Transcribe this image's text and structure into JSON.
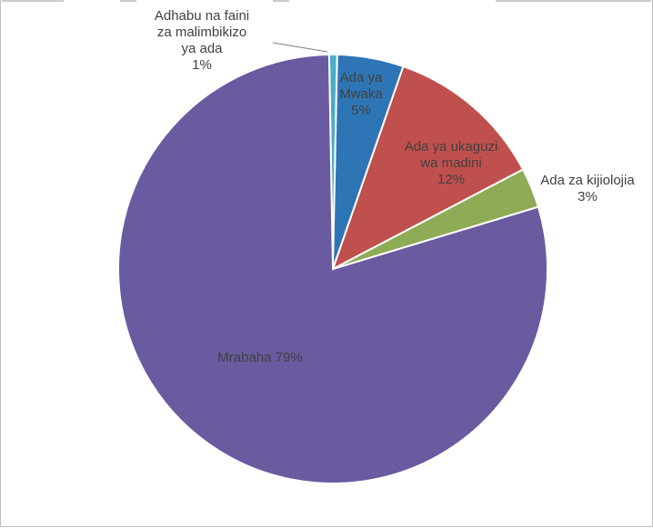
{
  "chart_data": {
    "type": "pie",
    "title": "",
    "slices": [
      {
        "label": "Adhabu na faini za malimbikizo ya ada",
        "value": 0.6,
        "display": "1%",
        "color": "#4bacc6",
        "lines": [
          "Adhabu na faini",
          "za malimbikizo",
          "ya ada",
          "1%"
        ]
      },
      {
        "label": "Ada ya Mwaka",
        "value": 5,
        "display": "5%",
        "color": "#2e75b6",
        "lines": [
          "Ada ya",
          "Mwaka",
          "5%"
        ]
      },
      {
        "label": "Ada ya ukaguzi wa madini",
        "value": 12,
        "display": "12%",
        "color": "#c0504d",
        "lines": [
          "Ada ya ukaguzi",
          "wa madini",
          "12%"
        ]
      },
      {
        "label": "Ada za kijiolojia",
        "value": 3,
        "display": "3%",
        "color": "#8eab55",
        "lines": [
          "Ada za kijiolojia",
          "3%"
        ]
      },
      {
        "label": "Mrabaha",
        "value": 79.4,
        "display": "79%",
        "color": "#6a5aa0",
        "lines": [
          "Mrabaha 79%"
        ]
      }
    ],
    "start_angle_deg": -1,
    "direction": "clockwise",
    "legend": "none",
    "data_labels": true
  }
}
